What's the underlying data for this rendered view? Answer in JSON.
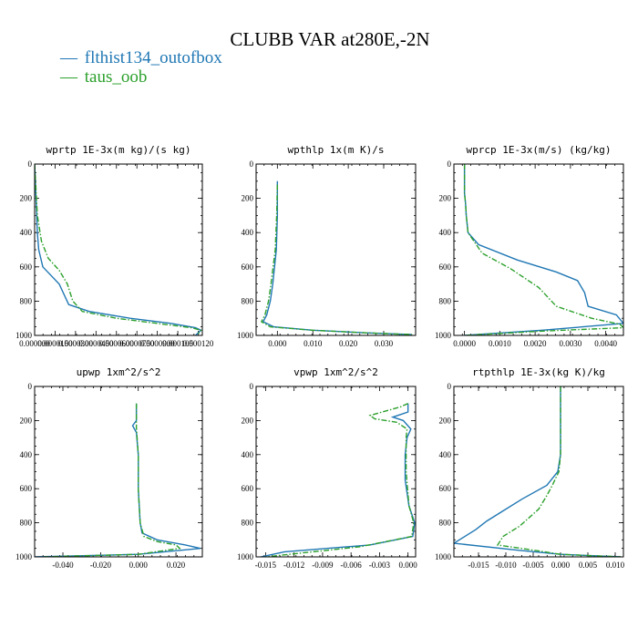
{
  "title": "CLUBB VAR at280E,-2N",
  "colors": {
    "case1": "#1f77b4",
    "case2": "#2ca02c"
  },
  "legend": [
    {
      "symbol": "—",
      "label": "flthist134_outofbox",
      "color": "#1f77b4"
    },
    {
      "symbol": "—",
      "label": "taus_oob",
      "color": "#2ca02c"
    }
  ],
  "chart_data": [
    {
      "type": "line",
      "title": "wprtp  1E-3x(m kg)/(s kg)",
      "xlim": [
        0,
        0.000123
      ],
      "ylim": [
        1000,
        0
      ],
      "xtick_values": [
        0,
        1.5e-05,
        3e-05,
        4.5e-05,
        6e-05,
        7.5e-05,
        9e-05,
        0.000105,
        0.00012
      ],
      "xtick_labels": [
        "0.000000",
        "0.0000150",
        "0.0000300",
        "0.0000450",
        "0.0000600",
        "0.0000750",
        "0.0000900",
        "0.000105",
        "0.000120"
      ],
      "ytick_values": [
        0,
        200,
        400,
        600,
        800,
        1000
      ],
      "ytick_labels": [
        "0",
        "200",
        "400",
        "600",
        "800",
        "1000"
      ],
      "series": [
        {
          "name": "flthist134_outofbox",
          "style": "solid",
          "x": [
            0.0,
            1e-06,
            2e-06,
            3e-06,
            6e-06,
            1.2e-05,
            1.8e-05,
            2.5e-05,
            4e-05,
            7e-05,
            0.0001,
            0.000118,
            0.000122,
            0.00012,
            0.000118
          ],
          "y": [
            0,
            200,
            400,
            500,
            600,
            650,
            700,
            820,
            860,
            900,
            930,
            955,
            970,
            985,
            1000
          ]
        },
        {
          "name": "taus_oob",
          "style": "dashed",
          "x": [
            0.0,
            2e-06,
            5e-06,
            1e-05,
            1.8e-05,
            2.4e-05,
            2.8e-05,
            3.5e-05,
            6e-05,
            9e-05,
            0.000115,
            0.000122,
            0.00012
          ],
          "y": [
            0,
            300,
            450,
            550,
            620,
            700,
            800,
            860,
            900,
            930,
            955,
            970,
            990
          ]
        }
      ]
    },
    {
      "type": "line",
      "title": "wpthlp  1x(m K)/s",
      "xlim": [
        -0.006,
        0.039
      ],
      "ylim": [
        1000,
        0
      ],
      "xtick_values": [
        0.0,
        0.01,
        0.02,
        0.03
      ],
      "xtick_labels": [
        "0.000",
        "0.010",
        "0.020",
        "0.030"
      ],
      "ytick_values": [
        0,
        200,
        400,
        600,
        800,
        1000
      ],
      "ytick_labels": [
        "0",
        "200",
        "400",
        "600",
        "800",
        "1000"
      ],
      "series": [
        {
          "name": "flthist134_outofbox",
          "style": "solid",
          "x": [
            0.0,
            0.0,
            -0.0003,
            -0.0008,
            -0.0013,
            -0.002,
            -0.003,
            -0.004,
            -0.001,
            0.01,
            0.025,
            0.038
          ],
          "y": [
            100,
            300,
            500,
            600,
            700,
            800,
            880,
            920,
            950,
            970,
            985,
            995
          ]
        },
        {
          "name": "taus_oob",
          "style": "dashed",
          "x": [
            0.0,
            -0.0002,
            -0.0006,
            -0.0012,
            -0.0018,
            -0.0025,
            -0.0035,
            -0.0045,
            -0.002,
            0.01,
            0.025,
            0.038
          ],
          "y": [
            120,
            300,
            500,
            600,
            700,
            800,
            880,
            920,
            950,
            970,
            985,
            995
          ]
        }
      ]
    },
    {
      "type": "line",
      "title": "wprcp  1E-3x(m/s) (kg/kg)",
      "xlim": [
        -0.0003,
        0.0045
      ],
      "ylim": [
        1000,
        0
      ],
      "xtick_values": [
        0.0,
        0.001,
        0.002,
        0.003,
        0.004
      ],
      "xtick_labels": [
        "0.0000",
        "0.0010",
        "0.0020",
        "0.0030",
        "0.0040"
      ],
      "ytick_values": [
        0,
        200,
        400,
        600,
        800,
        1000
      ],
      "ytick_labels": [
        "0",
        "200",
        "400",
        "600",
        "800",
        "1000"
      ],
      "series": [
        {
          "name": "flthist134_outofbox",
          "style": "solid",
          "x": [
            0.0,
            0.0,
            3e-05,
            5e-05,
            0.0001,
            0.0004,
            0.0015,
            0.0026,
            0.0032,
            0.0034,
            0.0035,
            0.0043,
            0.0045,
            0.0022,
            0.0
          ],
          "y": [
            0,
            170,
            230,
            300,
            400,
            470,
            560,
            630,
            680,
            750,
            830,
            880,
            930,
            970,
            1000
          ]
        },
        {
          "name": "taus_oob",
          "style": "dashed",
          "x": [
            0.0,
            0.0,
            3e-05,
            5e-05,
            0.0001,
            0.0005,
            0.0013,
            0.0021,
            0.0026,
            0.0036,
            0.0044,
            0.0045,
            0.0022,
            0.0
          ],
          "y": [
            0,
            170,
            230,
            300,
            400,
            520,
            610,
            720,
            830,
            900,
            935,
            955,
            975,
            1000
          ]
        }
      ]
    },
    {
      "type": "line",
      "title": "upwp  1xm^2/s^2",
      "xlim": [
        -0.055,
        0.034
      ],
      "ylim": [
        1000,
        0
      ],
      "xtick_values": [
        -0.04,
        -0.02,
        0.0,
        0.02
      ],
      "xtick_labels": [
        "-0.040",
        "-0.020",
        "0.000",
        "0.020"
      ],
      "ytick_values": [
        0,
        200,
        400,
        600,
        800,
        1000
      ],
      "ytick_labels": [
        "0",
        "200",
        "400",
        "600",
        "800",
        "1000"
      ],
      "series": [
        {
          "name": "flthist134_outofbox",
          "style": "solid",
          "x": [
            -0.001,
            -0.001,
            -0.003,
            -0.001,
            0.0,
            0.0,
            0.001,
            0.002,
            0.01,
            0.025,
            0.033,
            0.0,
            -0.055
          ],
          "y": [
            100,
            200,
            230,
            270,
            400,
            600,
            800,
            860,
            900,
            930,
            950,
            985,
            1000
          ]
        },
        {
          "name": "taus_oob",
          "style": "dashed",
          "x": [
            -0.001,
            -0.001,
            -0.001,
            0.0,
            0.0,
            0.001,
            0.003,
            0.01,
            0.02,
            0.022,
            0.0,
            -0.05
          ],
          "y": [
            100,
            200,
            240,
            400,
            600,
            800,
            880,
            910,
            930,
            950,
            985,
            1000
          ]
        }
      ]
    },
    {
      "type": "line",
      "title": "vpwp  1xm^2/s^2",
      "xlim": [
        -0.016,
        0.0008
      ],
      "ylim": [
        1000,
        0
      ],
      "xtick_values": [
        -0.015,
        -0.012,
        -0.009,
        -0.006,
        -0.003,
        0.0
      ],
      "xtick_labels": [
        "-0.015",
        "-0.012",
        "-0.009",
        "-0.006",
        "-0.003",
        "0.000"
      ],
      "ytick_values": [
        0,
        200,
        400,
        600,
        800,
        1000
      ],
      "ytick_labels": [
        "0",
        "200",
        "400",
        "600",
        "800",
        "1000"
      ],
      "series": [
        {
          "name": "flthist134_outofbox",
          "style": "solid",
          "x": [
            0.0,
            0.0,
            -0.0016,
            -0.0005,
            0.0003,
            -0.0001,
            -0.0003,
            -0.0003,
            0.0001,
            0.0007,
            0.0005,
            -0.004,
            -0.013,
            -0.0155
          ],
          "y": [
            100,
            150,
            180,
            200,
            250,
            300,
            400,
            550,
            700,
            800,
            880,
            930,
            970,
            1000
          ]
        },
        {
          "name": "taus_oob",
          "style": "dashed",
          "x": [
            0.0,
            -0.0008,
            -0.004,
            -0.0035,
            -0.0012,
            -0.0001,
            -0.0002,
            -0.0002,
            0.0001,
            0.0006,
            0.0004,
            -0.005,
            -0.015
          ],
          "y": [
            100,
            120,
            170,
            190,
            210,
            250,
            300,
            500,
            700,
            800,
            880,
            940,
            1000
          ]
        }
      ]
    },
    {
      "type": "line",
      "title": "rtpthlp  1E-3x(kg K)/kg",
      "xlim": [
        -0.0195,
        0.0115
      ],
      "ylim": [
        1000,
        0
      ],
      "xtick_values": [
        -0.015,
        -0.01,
        -0.005,
        0.0,
        0.005,
        0.01
      ],
      "xtick_labels": [
        "-0.015",
        "-0.010",
        "-0.005",
        "0.000",
        "0.005",
        "0.010"
      ],
      "ytick_values": [
        0,
        200,
        400,
        600,
        800,
        1000
      ],
      "ytick_labels": [
        "0",
        "200",
        "400",
        "600",
        "800",
        "1000"
      ],
      "series": [
        {
          "name": "flthist134_outofbox",
          "style": "solid",
          "x": [
            0.0,
            0.0,
            -0.0005,
            -0.0025,
            -0.007,
            -0.011,
            -0.0135,
            -0.0155,
            -0.0175,
            -0.0195,
            -0.008,
            0.0,
            0.011
          ],
          "y": [
            0,
            400,
            500,
            580,
            660,
            740,
            790,
            840,
            880,
            920,
            960,
            985,
            1000
          ]
        },
        {
          "name": "taus_oob",
          "style": "dashed",
          "x": [
            0.0,
            0.0,
            -0.0003,
            -0.0015,
            -0.0025,
            -0.004,
            -0.0075,
            -0.0105,
            -0.0115,
            -0.004,
            0.0,
            0.011
          ],
          "y": [
            0,
            400,
            500,
            580,
            640,
            720,
            820,
            880,
            930,
            965,
            985,
            1000
          ]
        }
      ]
    }
  ]
}
